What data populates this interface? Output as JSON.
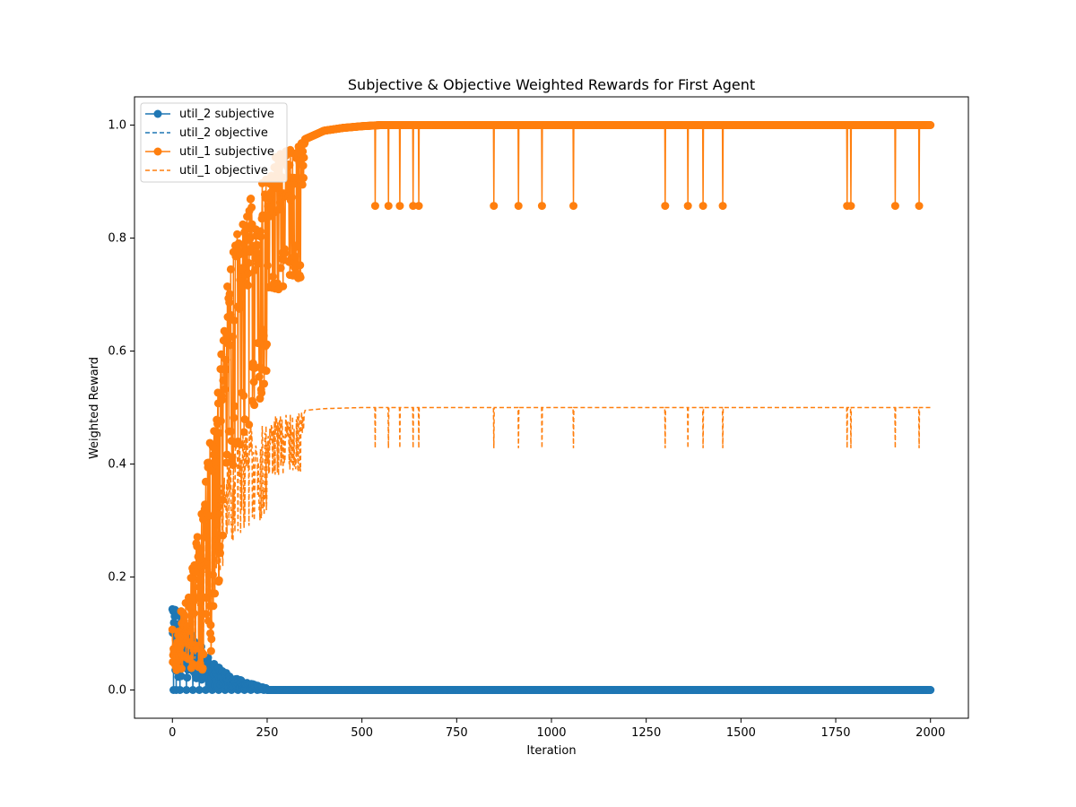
{
  "chart_data": {
    "type": "line",
    "title": "Subjective & Objective Weighted Rewards for First Agent",
    "xlabel": "Iteration",
    "ylabel": "Weighted Reward",
    "xlim": [
      -100,
      2100
    ],
    "ylim": [
      -0.05,
      1.05
    ],
    "xticks": [
      0,
      250,
      500,
      750,
      1000,
      1250,
      1500,
      1750,
      2000
    ],
    "xtick_labels": [
      "0",
      "250",
      "500",
      "750",
      "1000",
      "1250",
      "1500",
      "1750",
      "2000"
    ],
    "yticks": [
      0.0,
      0.2,
      0.4,
      0.6,
      0.8,
      1.0
    ],
    "ytick_labels": [
      "0.0",
      "0.2",
      "0.4",
      "0.6",
      "0.8",
      "1.0"
    ],
    "grid": false,
    "legend_position": "top-left",
    "colors": {
      "util_2": "#1f77b4",
      "util_1": "#ff7f0e"
    },
    "series": [
      {
        "name": "util_2 subjective",
        "style": "solid-marker",
        "color": "#1f77b4",
        "description_points": [
          [
            0,
            0.143
          ],
          [
            10,
            0.0
          ],
          [
            12,
            0.036
          ],
          [
            20,
            0.07
          ],
          [
            30,
            0.11
          ],
          [
            40,
            0.06
          ],
          [
            50,
            0.09
          ],
          [
            60,
            0.05
          ],
          [
            75,
            0.04
          ],
          [
            90,
            0.0
          ],
          [
            100,
            0.02
          ],
          [
            125,
            0.015
          ],
          [
            150,
            0.005
          ],
          [
            175,
            0.02
          ],
          [
            200,
            0.0
          ],
          [
            250,
            0.0
          ],
          [
            500,
            0.0
          ],
          [
            1000,
            0.0
          ],
          [
            1500,
            0.0
          ],
          [
            2000,
            0.0
          ]
        ]
      },
      {
        "name": "util_2 objective",
        "style": "dashed",
        "color": "#1f77b4",
        "description_points": [
          [
            0,
            0.143
          ],
          [
            25,
            0.1
          ],
          [
            50,
            0.08
          ],
          [
            75,
            0.06
          ],
          [
            100,
            0.04
          ],
          [
            150,
            0.02
          ],
          [
            200,
            0.01
          ],
          [
            250,
            0.002
          ],
          [
            300,
            0.0
          ],
          [
            2000,
            0.0
          ]
        ]
      },
      {
        "name": "util_1 subjective",
        "style": "solid-marker",
        "color": "#ff7f0e",
        "envelope_points": [
          [
            0,
            0.107
          ],
          [
            25,
            0.18
          ],
          [
            50,
            0.22
          ],
          [
            75,
            0.3
          ],
          [
            100,
            0.45
          ],
          [
            125,
            0.6
          ],
          [
            150,
            0.75
          ],
          [
            175,
            0.82
          ],
          [
            200,
            0.86
          ],
          [
            225,
            0.9
          ],
          [
            250,
            0.93
          ],
          [
            300,
            0.96
          ],
          [
            350,
            0.975
          ],
          [
            400,
            0.99
          ],
          [
            450,
            0.995
          ],
          [
            500,
            0.998
          ],
          [
            550,
            1.0
          ],
          [
            2000,
            1.0
          ]
        ],
        "dips": [
          [
            535,
            0.857
          ],
          [
            570,
            0.857
          ],
          [
            600,
            0.857
          ],
          [
            635,
            0.857
          ],
          [
            650,
            0.857
          ],
          [
            848,
            0.857
          ],
          [
            913,
            0.857
          ],
          [
            975,
            0.857
          ],
          [
            1058,
            0.857
          ],
          [
            1300,
            0.857
          ],
          [
            1360,
            0.857
          ],
          [
            1400,
            0.857
          ],
          [
            1452,
            0.857
          ],
          [
            1780,
            0.857
          ],
          [
            1790,
            0.857
          ],
          [
            1907,
            0.857
          ],
          [
            1970,
            0.857
          ]
        ]
      },
      {
        "name": "util_1 objective",
        "style": "dashed",
        "color": "#ff7f0e",
        "envelope_points": [
          [
            0,
            0.107
          ],
          [
            25,
            0.13
          ],
          [
            50,
            0.17
          ],
          [
            75,
            0.22
          ],
          [
            100,
            0.3
          ],
          [
            125,
            0.37
          ],
          [
            150,
            0.42
          ],
          [
            175,
            0.45
          ],
          [
            200,
            0.465
          ],
          [
            250,
            0.48
          ],
          [
            300,
            0.49
          ],
          [
            350,
            0.495
          ],
          [
            400,
            0.498
          ],
          [
            500,
            0.5
          ],
          [
            2000,
            0.5
          ]
        ],
        "dips": [
          [
            535,
            0.428
          ],
          [
            570,
            0.428
          ],
          [
            600,
            0.428
          ],
          [
            635,
            0.428
          ],
          [
            650,
            0.428
          ],
          [
            848,
            0.428
          ],
          [
            913,
            0.428
          ],
          [
            975,
            0.428
          ],
          [
            1058,
            0.428
          ],
          [
            1300,
            0.428
          ],
          [
            1360,
            0.428
          ],
          [
            1400,
            0.428
          ],
          [
            1452,
            0.428
          ],
          [
            1780,
            0.428
          ],
          [
            1790,
            0.428
          ],
          [
            1907,
            0.428
          ],
          [
            1970,
            0.428
          ]
        ]
      }
    ]
  }
}
